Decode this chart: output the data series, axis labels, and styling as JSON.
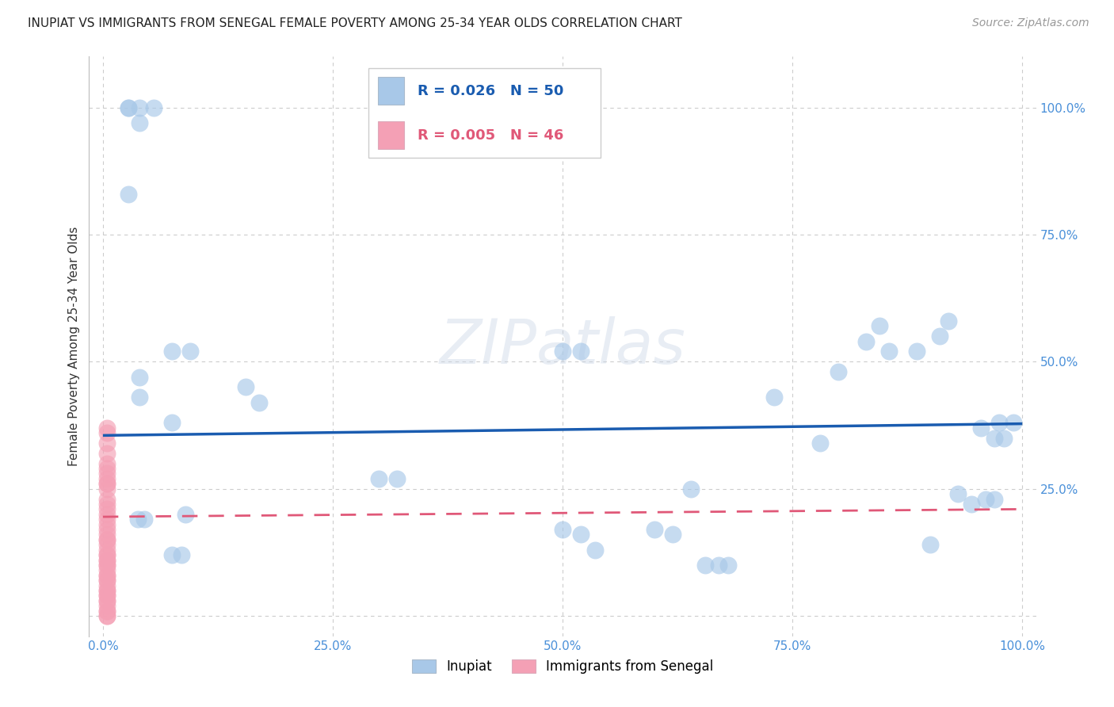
{
  "title": "INUPIAT VS IMMIGRANTS FROM SENEGAL FEMALE POVERTY AMONG 25-34 YEAR OLDS CORRELATION CHART",
  "source": "Source: ZipAtlas.com",
  "ylabel": "Female Poverty Among 25-34 Year Olds",
  "watermark": "ZIPatlas",
  "legend_inupiat": "Inupiat",
  "legend_senegal": "Immigrants from Senegal",
  "inupiat_R": "0.026",
  "inupiat_N": "50",
  "senegal_R": "0.005",
  "senegal_N": "46",
  "inupiat_color": "#a8c8e8",
  "senegal_color": "#f4a0b5",
  "trendline_inupiat_color": "#1a5cb0",
  "trendline_senegal_color": "#e05878",
  "background_color": "#ffffff",
  "inupiat_x": [
    0.028,
    0.04,
    0.055,
    0.028,
    0.04,
    0.028,
    0.04,
    0.04,
    0.095,
    0.075,
    0.155,
    0.17,
    0.5,
    0.52,
    0.5,
    0.52,
    0.535,
    0.64,
    0.68,
    0.73,
    0.78,
    0.83,
    0.845,
    0.855,
    0.885,
    0.93,
    0.945,
    0.955,
    0.975,
    0.99,
    0.3,
    0.32,
    0.6,
    0.62,
    0.655,
    0.67,
    0.8,
    0.9,
    0.97,
    0.98,
    0.075,
    0.09,
    0.038,
    0.045,
    0.91,
    0.92,
    0.96,
    0.97,
    0.075,
    0.085
  ],
  "inupiat_y": [
    1.0,
    1.0,
    1.0,
    1.0,
    0.97,
    0.83,
    0.47,
    0.43,
    0.52,
    0.52,
    0.45,
    0.42,
    0.52,
    0.52,
    0.17,
    0.16,
    0.13,
    0.25,
    0.1,
    0.43,
    0.34,
    0.54,
    0.57,
    0.52,
    0.52,
    0.24,
    0.22,
    0.37,
    0.38,
    0.38,
    0.27,
    0.27,
    0.17,
    0.16,
    0.1,
    0.1,
    0.48,
    0.14,
    0.35,
    0.35,
    0.38,
    0.2,
    0.19,
    0.19,
    0.55,
    0.58,
    0.23,
    0.23,
    0.12,
    0.12
  ],
  "senegal_x": [
    0.004,
    0.004,
    0.004,
    0.004,
    0.004,
    0.004,
    0.004,
    0.004,
    0.004,
    0.004,
    0.004,
    0.004,
    0.004,
    0.004,
    0.004,
    0.004,
    0.004,
    0.004,
    0.004,
    0.004,
    0.004,
    0.004,
    0.004,
    0.004,
    0.004,
    0.004,
    0.004,
    0.004,
    0.004,
    0.004,
    0.004,
    0.004,
    0.004,
    0.004,
    0.004,
    0.004,
    0.004,
    0.004,
    0.004,
    0.004,
    0.004,
    0.004,
    0.004,
    0.004,
    0.004,
    0.004
  ],
  "senegal_y": [
    0.37,
    0.36,
    0.34,
    0.32,
    0.3,
    0.29,
    0.27,
    0.26,
    0.25,
    0.23,
    0.22,
    0.21,
    0.2,
    0.19,
    0.18,
    0.17,
    0.16,
    0.15,
    0.14,
    0.13,
    0.12,
    0.11,
    0.1,
    0.09,
    0.08,
    0.07,
    0.06,
    0.05,
    0.04,
    0.03,
    0.02,
    0.01,
    0.0,
    0.0,
    0.01,
    0.28,
    0.26,
    0.1,
    0.08,
    0.07,
    0.05,
    0.04,
    0.03,
    0.15,
    0.12,
    0.11
  ],
  "inupiat_trend_y0": 0.355,
  "inupiat_trend_y1": 0.378,
  "senegal_trend_y0": 0.195,
  "senegal_trend_y1": 0.21,
  "xlim": [
    -0.015,
    1.015
  ],
  "ylim": [
    -0.04,
    1.1
  ],
  "xticks": [
    0.0,
    0.25,
    0.5,
    0.75,
    1.0
  ],
  "yticks": [
    0.0,
    0.25,
    0.5,
    0.75,
    1.0
  ],
  "xtick_labels": [
    "0.0%",
    "25.0%",
    "50.0%",
    "75.0%",
    "100.0%"
  ],
  "ytick_labels": [
    "",
    "25.0%",
    "50.0%",
    "75.0%",
    "100.0%"
  ],
  "tick_color": "#4a90d9",
  "grid_color": "#cccccc",
  "title_fontsize": 11,
  "source_fontsize": 10,
  "axis_label_fontsize": 11,
  "tick_fontsize": 11
}
